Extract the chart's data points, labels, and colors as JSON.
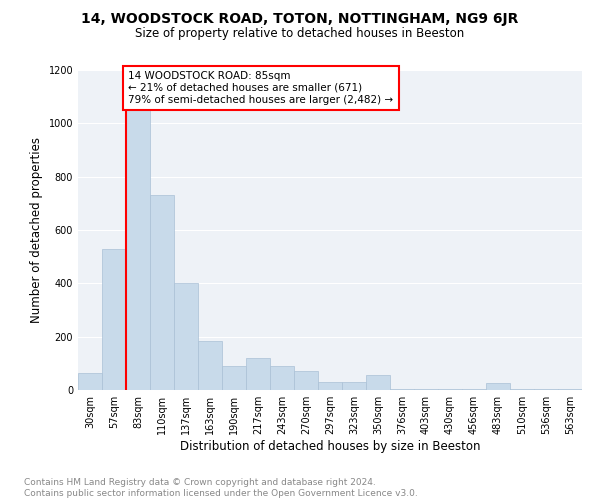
{
  "title": "14, WOODSTOCK ROAD, TOTON, NOTTINGHAM, NG9 6JR",
  "subtitle": "Size of property relative to detached houses in Beeston",
  "xlabel": "Distribution of detached houses by size in Beeston",
  "ylabel": "Number of detached properties",
  "bar_color": "#c8daea",
  "bar_edge_color": "#aac0d6",
  "bin_labels": [
    "30sqm",
    "57sqm",
    "83sqm",
    "110sqm",
    "137sqm",
    "163sqm",
    "190sqm",
    "217sqm",
    "243sqm",
    "270sqm",
    "297sqm",
    "323sqm",
    "350sqm",
    "376sqm",
    "403sqm",
    "430sqm",
    "456sqm",
    "483sqm",
    "510sqm",
    "536sqm",
    "563sqm"
  ],
  "bar_values": [
    65,
    530,
    1050,
    730,
    400,
    185,
    90,
    120,
    90,
    70,
    30,
    30,
    55,
    5,
    5,
    5,
    5,
    25,
    5,
    5,
    5
  ],
  "ylim": [
    0,
    1200
  ],
  "yticks": [
    0,
    200,
    400,
    600,
    800,
    1000,
    1200
  ],
  "red_line_x": 1.5,
  "annotation_text": "14 WOODSTOCK ROAD: 85sqm\n← 21% of detached houses are smaller (671)\n79% of semi-detached houses are larger (2,482) →",
  "footer_line1": "Contains HM Land Registry data © Crown copyright and database right 2024.",
  "footer_line2": "Contains public sector information licensed under the Open Government Licence v3.0.",
  "background_color": "#ffffff",
  "plot_bg_color": "#eef2f7",
  "grid_color": "#ffffff",
  "title_fontsize": 10,
  "subtitle_fontsize": 8.5,
  "axis_label_fontsize": 8.5,
  "tick_fontsize": 7,
  "annotation_fontsize": 7.5,
  "footer_fontsize": 6.5
}
